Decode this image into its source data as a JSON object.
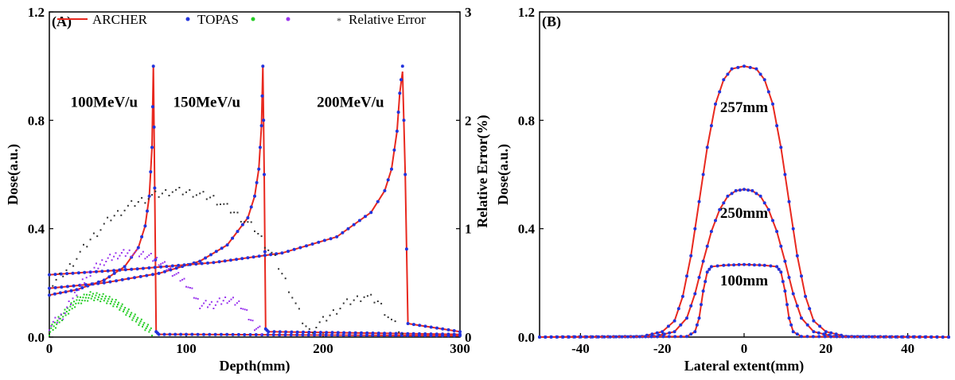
{
  "chart_data": [
    {
      "panel": "(A)",
      "type": "line",
      "xlabel": "Depth(mm)",
      "ylabel": "Dose(a.u.)",
      "y2label": "Relative Error(%)",
      "xlim": [
        0,
        300
      ],
      "ylim": [
        0,
        1.2
      ],
      "y2lim": [
        0,
        3
      ],
      "xticks": [
        0,
        100,
        200,
        300
      ],
      "yticks": [
        "0.0",
        "0.4",
        "0.8",
        "1.2"
      ],
      "y2ticks": [
        "0",
        "1",
        "2",
        "3"
      ],
      "legend": {
        "placement": "top",
        "entries": [
          {
            "label": "ARCHER",
            "marker": "line",
            "color": "#e8281e"
          },
          {
            "label": "TOPAS",
            "marker": "dot",
            "color": "#2233dd"
          },
          {
            "label": "",
            "marker": "dot",
            "color": "#22cc22"
          },
          {
            "label": "",
            "marker": "dot",
            "color": "#9933ee"
          },
          {
            "label": "Relative Error",
            "marker": "star",
            "color": "#333333"
          }
        ]
      },
      "annotations": [
        {
          "text": "100MeV/u",
          "x": 40,
          "y": 0.85
        },
        {
          "text": "150MeV/u",
          "x": 115,
          "y": 0.85
        },
        {
          "text": "200MeV/u",
          "x": 220,
          "y": 0.85
        }
      ],
      "series": [
        {
          "name": "ARCHER",
          "energy": "100MeV/u",
          "style": "line",
          "color": "#e8281e",
          "x": [
            0,
            20,
            40,
            55,
            65,
            70,
            73,
            75,
            76,
            77,
            78,
            80,
            100,
            300
          ],
          "y": [
            0.155,
            0.175,
            0.21,
            0.26,
            0.33,
            0.41,
            0.52,
            0.7,
            1.0,
            0.55,
            0.02,
            0.01,
            0.01,
            0.005
          ]
        },
        {
          "name": "TOPAS",
          "energy": "100MeV/u",
          "style": "dots",
          "color": "#2233dd",
          "x": [
            0,
            20,
            40,
            55,
            65,
            70,
            73,
            75,
            76,
            77,
            78,
            80,
            100,
            300
          ],
          "y": [
            0.155,
            0.175,
            0.21,
            0.26,
            0.33,
            0.41,
            0.52,
            0.7,
            1.0,
            0.55,
            0.02,
            0.01,
            0.01,
            0.005
          ]
        },
        {
          "name": "ARCHER",
          "energy": "150MeV/u",
          "style": "line",
          "color": "#e8281e",
          "x": [
            0,
            40,
            80,
            110,
            130,
            145,
            150,
            153,
            155,
            156,
            157,
            158,
            160,
            300
          ],
          "y": [
            0.18,
            0.2,
            0.235,
            0.28,
            0.34,
            0.44,
            0.52,
            0.62,
            0.78,
            1.0,
            0.6,
            0.03,
            0.02,
            0.01
          ]
        },
        {
          "name": "TOPAS",
          "energy": "150MeV/u",
          "style": "dots",
          "color": "#2233dd",
          "x": [
            0,
            40,
            80,
            110,
            130,
            145,
            150,
            153,
            155,
            156,
            157,
            158,
            160,
            300
          ],
          "y": [
            0.18,
            0.2,
            0.235,
            0.28,
            0.34,
            0.44,
            0.52,
            0.62,
            0.78,
            1.0,
            0.6,
            0.03,
            0.02,
            0.01
          ]
        },
        {
          "name": "ARCHER",
          "energy": "200MeV/u",
          "style": "line",
          "color": "#e8281e",
          "x": [
            0,
            60,
            120,
            170,
            210,
            235,
            245,
            250,
            254,
            256,
            258,
            260,
            262,
            300
          ],
          "y": [
            0.23,
            0.25,
            0.275,
            0.31,
            0.37,
            0.46,
            0.54,
            0.62,
            0.76,
            0.9,
            0.98,
            0.6,
            0.05,
            0.02
          ]
        },
        {
          "name": "TOPAS",
          "energy": "200MeV/u",
          "style": "dots",
          "color": "#2233dd",
          "x": [
            0,
            60,
            120,
            170,
            210,
            235,
            245,
            250,
            254,
            256,
            258,
            260,
            262,
            300
          ],
          "y": [
            0.23,
            0.25,
            0.275,
            0.31,
            0.37,
            0.46,
            0.54,
            0.62,
            0.76,
            0.9,
            1.0,
            0.6,
            0.05,
            0.02
          ]
        },
        {
          "name": "",
          "energy": "100MeV/u",
          "style": "scatter",
          "axis": "right",
          "color": "#22cc22",
          "x": [
            0,
            10,
            20,
            30,
            40,
            50,
            60,
            70,
            75
          ],
          "y": [
            0.05,
            0.2,
            0.33,
            0.38,
            0.36,
            0.3,
            0.2,
            0.1,
            0.05
          ]
        },
        {
          "name": "",
          "energy": "150MeV/u",
          "style": "scatter",
          "axis": "right",
          "color": "#9933ee",
          "x": [
            0,
            10,
            20,
            30,
            40,
            50,
            60,
            70,
            80,
            90,
            100,
            110,
            120,
            130,
            140,
            150,
            155
          ],
          "y": [
            0.1,
            0.2,
            0.42,
            0.6,
            0.7,
            0.76,
            0.78,
            0.76,
            0.7,
            0.6,
            0.5,
            0.3,
            0.3,
            0.35,
            0.3,
            0.1,
            0.05
          ]
        },
        {
          "name": "Relative Error",
          "energy": "200MeV/u",
          "style": "scatter",
          "axis": "right",
          "color": "#333333",
          "x": [
            0,
            15,
            30,
            45,
            60,
            75,
            90,
            105,
            120,
            135,
            150,
            165,
            175,
            185,
            190,
            200,
            215,
            230,
            240,
            250,
            258
          ],
          "y": [
            0.45,
            0.65,
            0.9,
            1.1,
            1.22,
            1.3,
            1.35,
            1.33,
            1.28,
            1.15,
            1.0,
            0.72,
            0.45,
            0.15,
            0.05,
            0.15,
            0.3,
            0.38,
            0.33,
            0.15,
            0.03
          ]
        }
      ]
    },
    {
      "panel": "(B)",
      "type": "line",
      "xlabel": "Lateral extent(mm)",
      "ylabel": "Dose(a.u.)",
      "xlim": [
        -50,
        50
      ],
      "ylim": [
        0,
        1.2
      ],
      "xticks": [
        -40,
        -20,
        0,
        20,
        40
      ],
      "yticks": [
        "0.0",
        "0.4",
        "0.8",
        "1.2"
      ],
      "annotations": [
        {
          "text": "257mm",
          "x": 0,
          "y": 0.83
        },
        {
          "text": "250mm",
          "x": 0,
          "y": 0.44
        },
        {
          "text": "100mm",
          "x": 0,
          "y": 0.19
        }
      ],
      "series": [
        {
          "name": "257mm",
          "style": "line+dots",
          "line_color": "#e8281e",
          "dot_color": "#2233dd",
          "x": [
            -50,
            -25,
            -20,
            -17,
            -15,
            -13,
            -11,
            -9,
            -7,
            -5,
            -3,
            0,
            3,
            5,
            7,
            9,
            11,
            13,
            15,
            17,
            20,
            25,
            50
          ],
          "y": [
            0,
            0.002,
            0.02,
            0.06,
            0.15,
            0.3,
            0.5,
            0.7,
            0.86,
            0.95,
            0.99,
            1.0,
            0.99,
            0.95,
            0.86,
            0.7,
            0.5,
            0.3,
            0.15,
            0.06,
            0.02,
            0.002,
            0
          ]
        },
        {
          "name": "250mm",
          "style": "line+dots",
          "line_color": "#e8281e",
          "dot_color": "#2233dd",
          "x": [
            -50,
            -22,
            -17,
            -14,
            -12,
            -10,
            -8,
            -6,
            -4,
            -2,
            0,
            2,
            4,
            6,
            8,
            10,
            12,
            14,
            17,
            22,
            50
          ],
          "y": [
            0,
            0.002,
            0.02,
            0.07,
            0.16,
            0.28,
            0.39,
            0.47,
            0.52,
            0.54,
            0.545,
            0.54,
            0.52,
            0.47,
            0.39,
            0.28,
            0.16,
            0.07,
            0.02,
            0.002,
            0
          ]
        },
        {
          "name": "100mm",
          "style": "line+dots",
          "line_color": "#e8281e",
          "dot_color": "#2233dd",
          "x": [
            -50,
            -14,
            -12,
            -11,
            -10,
            -9,
            -8,
            -5,
            0,
            5,
            8,
            9,
            10,
            11,
            12,
            14,
            50
          ],
          "y": [
            0,
            0.002,
            0.02,
            0.07,
            0.17,
            0.24,
            0.26,
            0.265,
            0.268,
            0.265,
            0.26,
            0.24,
            0.17,
            0.07,
            0.02,
            0.002,
            0
          ]
        }
      ]
    }
  ]
}
